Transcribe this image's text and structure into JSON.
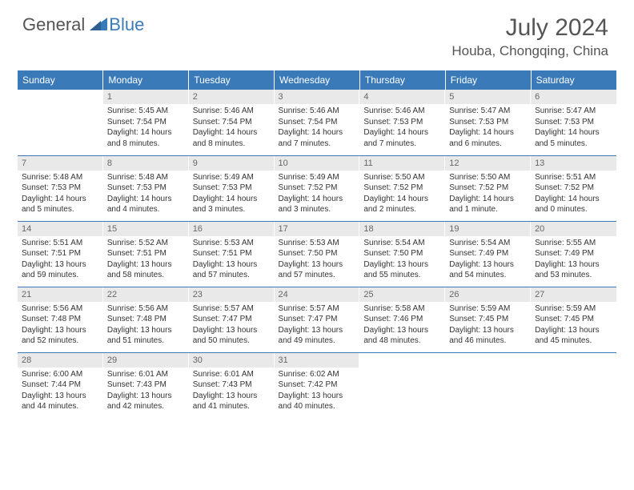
{
  "logo": {
    "general": "General",
    "blue": "Blue"
  },
  "title": "July 2024",
  "location": "Houba, Chongqing, China",
  "colors": {
    "accent": "#3a7ab8",
    "header_bg": "#3a7ab8",
    "daynum_bg": "#e9e9e9",
    "text": "#333333"
  },
  "day_headers": [
    "Sunday",
    "Monday",
    "Tuesday",
    "Wednesday",
    "Thursday",
    "Friday",
    "Saturday"
  ],
  "weeks": [
    [
      {
        "num": "",
        "text": ""
      },
      {
        "num": "1",
        "text": "Sunrise: 5:45 AM\nSunset: 7:54 PM\nDaylight: 14 hours and 8 minutes."
      },
      {
        "num": "2",
        "text": "Sunrise: 5:46 AM\nSunset: 7:54 PM\nDaylight: 14 hours and 8 minutes."
      },
      {
        "num": "3",
        "text": "Sunrise: 5:46 AM\nSunset: 7:54 PM\nDaylight: 14 hours and 7 minutes."
      },
      {
        "num": "4",
        "text": "Sunrise: 5:46 AM\nSunset: 7:53 PM\nDaylight: 14 hours and 7 minutes."
      },
      {
        "num": "5",
        "text": "Sunrise: 5:47 AM\nSunset: 7:53 PM\nDaylight: 14 hours and 6 minutes."
      },
      {
        "num": "6",
        "text": "Sunrise: 5:47 AM\nSunset: 7:53 PM\nDaylight: 14 hours and 5 minutes."
      }
    ],
    [
      {
        "num": "7",
        "text": "Sunrise: 5:48 AM\nSunset: 7:53 PM\nDaylight: 14 hours and 5 minutes."
      },
      {
        "num": "8",
        "text": "Sunrise: 5:48 AM\nSunset: 7:53 PM\nDaylight: 14 hours and 4 minutes."
      },
      {
        "num": "9",
        "text": "Sunrise: 5:49 AM\nSunset: 7:53 PM\nDaylight: 14 hours and 3 minutes."
      },
      {
        "num": "10",
        "text": "Sunrise: 5:49 AM\nSunset: 7:52 PM\nDaylight: 14 hours and 3 minutes."
      },
      {
        "num": "11",
        "text": "Sunrise: 5:50 AM\nSunset: 7:52 PM\nDaylight: 14 hours and 2 minutes."
      },
      {
        "num": "12",
        "text": "Sunrise: 5:50 AM\nSunset: 7:52 PM\nDaylight: 14 hours and 1 minute."
      },
      {
        "num": "13",
        "text": "Sunrise: 5:51 AM\nSunset: 7:52 PM\nDaylight: 14 hours and 0 minutes."
      }
    ],
    [
      {
        "num": "14",
        "text": "Sunrise: 5:51 AM\nSunset: 7:51 PM\nDaylight: 13 hours and 59 minutes."
      },
      {
        "num": "15",
        "text": "Sunrise: 5:52 AM\nSunset: 7:51 PM\nDaylight: 13 hours and 58 minutes."
      },
      {
        "num": "16",
        "text": "Sunrise: 5:53 AM\nSunset: 7:51 PM\nDaylight: 13 hours and 57 minutes."
      },
      {
        "num": "17",
        "text": "Sunrise: 5:53 AM\nSunset: 7:50 PM\nDaylight: 13 hours and 57 minutes."
      },
      {
        "num": "18",
        "text": "Sunrise: 5:54 AM\nSunset: 7:50 PM\nDaylight: 13 hours and 55 minutes."
      },
      {
        "num": "19",
        "text": "Sunrise: 5:54 AM\nSunset: 7:49 PM\nDaylight: 13 hours and 54 minutes."
      },
      {
        "num": "20",
        "text": "Sunrise: 5:55 AM\nSunset: 7:49 PM\nDaylight: 13 hours and 53 minutes."
      }
    ],
    [
      {
        "num": "21",
        "text": "Sunrise: 5:56 AM\nSunset: 7:48 PM\nDaylight: 13 hours and 52 minutes."
      },
      {
        "num": "22",
        "text": "Sunrise: 5:56 AM\nSunset: 7:48 PM\nDaylight: 13 hours and 51 minutes."
      },
      {
        "num": "23",
        "text": "Sunrise: 5:57 AM\nSunset: 7:47 PM\nDaylight: 13 hours and 50 minutes."
      },
      {
        "num": "24",
        "text": "Sunrise: 5:57 AM\nSunset: 7:47 PM\nDaylight: 13 hours and 49 minutes."
      },
      {
        "num": "25",
        "text": "Sunrise: 5:58 AM\nSunset: 7:46 PM\nDaylight: 13 hours and 48 minutes."
      },
      {
        "num": "26",
        "text": "Sunrise: 5:59 AM\nSunset: 7:45 PM\nDaylight: 13 hours and 46 minutes."
      },
      {
        "num": "27",
        "text": "Sunrise: 5:59 AM\nSunset: 7:45 PM\nDaylight: 13 hours and 45 minutes."
      }
    ],
    [
      {
        "num": "28",
        "text": "Sunrise: 6:00 AM\nSunset: 7:44 PM\nDaylight: 13 hours and 44 minutes."
      },
      {
        "num": "29",
        "text": "Sunrise: 6:01 AM\nSunset: 7:43 PM\nDaylight: 13 hours and 42 minutes."
      },
      {
        "num": "30",
        "text": "Sunrise: 6:01 AM\nSunset: 7:43 PM\nDaylight: 13 hours and 41 minutes."
      },
      {
        "num": "31",
        "text": "Sunrise: 6:02 AM\nSunset: 7:42 PM\nDaylight: 13 hours and 40 minutes."
      },
      {
        "num": "",
        "text": ""
      },
      {
        "num": "",
        "text": ""
      },
      {
        "num": "",
        "text": ""
      }
    ]
  ]
}
